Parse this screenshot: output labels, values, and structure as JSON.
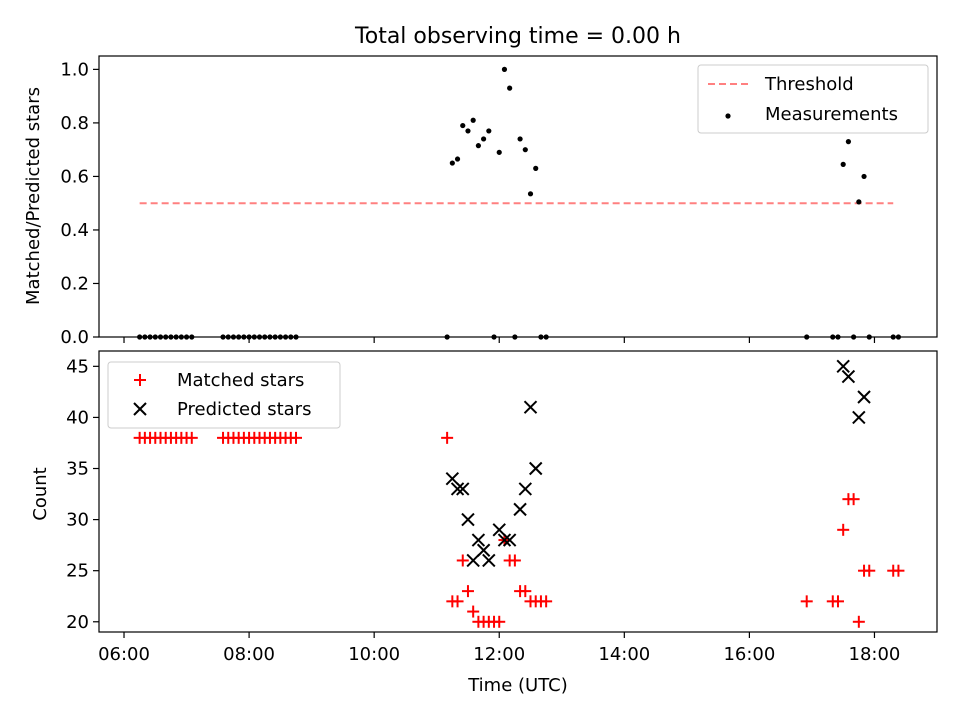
{
  "title": "Total observing time = 0.00 h",
  "xlabel": "Time (UTC)",
  "x_ticks": [
    "06:00",
    "08:00",
    "10:00",
    "12:00",
    "14:00",
    "16:00",
    "18:00"
  ],
  "chart_data": [
    {
      "type": "scatter",
      "ylabel": "Matched/Predicted stars",
      "xlim": [
        5.6,
        19.0
      ],
      "ylim": [
        0,
        1.05
      ],
      "y_ticks": [
        "0.0",
        "0.2",
        "0.4",
        "0.6",
        "0.8",
        "1.0"
      ],
      "legend_position": "upper right",
      "threshold": {
        "name": "Threshold",
        "color": "#ff8080",
        "y": 0.5,
        "x_range": [
          "06:15",
          "18:18"
        ]
      },
      "measurements": {
        "name": "Measurements",
        "color": "#000000",
        "x": [
          "06:15",
          "06:20",
          "06:25",
          "06:30",
          "06:35",
          "06:40",
          "06:45",
          "06:50",
          "06:55",
          "07:00",
          "07:05",
          "07:35",
          "07:40",
          "07:45",
          "07:50",
          "07:55",
          "08:00",
          "08:05",
          "08:10",
          "08:15",
          "08:20",
          "08:25",
          "08:30",
          "08:35",
          "08:40",
          "08:45",
          "11:10",
          "11:15",
          "11:20",
          "11:25",
          "11:30",
          "11:35",
          "11:40",
          "11:45",
          "11:50",
          "11:55",
          "12:00",
          "12:05",
          "12:10",
          "12:15",
          "12:20",
          "12:25",
          "12:30",
          "12:35",
          "12:40",
          "12:45",
          "16:55",
          "17:20",
          "17:25",
          "17:30",
          "17:35",
          "17:40",
          "17:45",
          "17:50",
          "17:55",
          "18:18",
          "18:23"
        ],
        "y": [
          0,
          0,
          0,
          0,
          0,
          0,
          0,
          0,
          0,
          0,
          0,
          0,
          0,
          0,
          0,
          0,
          0,
          0,
          0,
          0,
          0,
          0,
          0,
          0,
          0,
          0,
          0,
          0.65,
          0.665,
          0.79,
          0.77,
          0.81,
          0.715,
          0.74,
          0.77,
          0,
          0.69,
          1.0,
          0.93,
          0,
          0.74,
          0.7,
          0.535,
          0.63,
          0,
          0,
          0,
          0,
          0,
          0.645,
          0.73,
          0,
          0.505,
          0.6,
          0,
          0,
          0
        ]
      }
    },
    {
      "type": "scatter",
      "ylabel": "Count",
      "xlim": [
        5.6,
        19.0
      ],
      "ylim": [
        19,
        46.5
      ],
      "y_ticks": [
        "20",
        "25",
        "30",
        "35",
        "40",
        "45"
      ],
      "legend_position": "upper left",
      "series": [
        {
          "name": "Matched stars",
          "color": "#ff0000",
          "marker": "+",
          "x": [
            "06:15",
            "06:20",
            "06:25",
            "06:30",
            "06:35",
            "06:40",
            "06:45",
            "06:50",
            "06:55",
            "07:00",
            "07:05",
            "07:35",
            "07:40",
            "07:45",
            "07:50",
            "07:55",
            "08:00",
            "08:05",
            "08:10",
            "08:15",
            "08:20",
            "08:25",
            "08:30",
            "08:35",
            "08:40",
            "08:45",
            "11:10",
            "11:15",
            "11:20",
            "11:25",
            "11:30",
            "11:35",
            "11:40",
            "11:45",
            "11:50",
            "11:55",
            "12:00",
            "12:05",
            "12:10",
            "12:15",
            "12:20",
            "12:25",
            "12:30",
            "12:35",
            "12:40",
            "12:45",
            "16:55",
            "17:20",
            "17:25",
            "17:30",
            "17:35",
            "17:40",
            "17:45",
            "17:50",
            "17:55",
            "18:18",
            "18:23"
          ],
          "y": [
            38,
            38,
            38,
            38,
            38,
            38,
            38,
            38,
            38,
            38,
            38,
            38,
            38,
            38,
            38,
            38,
            38,
            38,
            38,
            38,
            38,
            38,
            38,
            38,
            38,
            38,
            38,
            22,
            22,
            26,
            23,
            21,
            20,
            20,
            20,
            20,
            20,
            28,
            26,
            26,
            23,
            23,
            22,
            22,
            22,
            22,
            22,
            22,
            22,
            29,
            32,
            32,
            20,
            25,
            25,
            25,
            25
          ]
        },
        {
          "name": "Predicted stars",
          "color": "#000000",
          "marker": "x",
          "x": [
            "11:15",
            "11:20",
            "11:25",
            "11:30",
            "11:35",
            "11:40",
            "11:45",
            "11:50",
            "12:00",
            "12:05",
            "12:10",
            "12:20",
            "12:25",
            "12:30",
            "12:35",
            "17:30",
            "17:35",
            "17:45",
            "17:50"
          ],
          "y": [
            34,
            33,
            33,
            30,
            26,
            28,
            27,
            26,
            29,
            28,
            28,
            31,
            33,
            41,
            35,
            45,
            44,
            40,
            42
          ]
        }
      ]
    }
  ]
}
